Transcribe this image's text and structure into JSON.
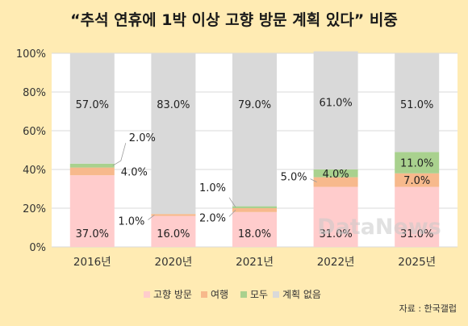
{
  "chart_data": {
    "type": "bar",
    "stacked": true,
    "title": "“추석 연휴에 1박 이상 고향 방문 계획 있다” 비중",
    "categories": [
      "2016년",
      "2020년",
      "2021년",
      "2022년",
      "2025년"
    ],
    "ylim": [
      0,
      100
    ],
    "yticks": [
      "0%",
      "20%",
      "40%",
      "60%",
      "80%",
      "100%"
    ],
    "grid": true,
    "legend_position": "bottom",
    "series": [
      {
        "name": "고향 방문",
        "color": "#FFCCCC",
        "values": [
          37.0,
          16.0,
          18.0,
          31.0,
          31.0
        ],
        "labels": [
          "37.0%",
          "16.0%",
          "18.0%",
          "31.0%",
          "31.0%"
        ]
      },
      {
        "name": "여행",
        "color": "#F7B98C",
        "values": [
          4.0,
          1.0,
          2.0,
          5.0,
          7.0
        ],
        "labels": [
          "4.0%",
          "1.0%",
          "2.0%",
          "5.0%",
          "7.0%"
        ]
      },
      {
        "name": "모두",
        "color": "#A9D18E",
        "values": [
          2.0,
          0,
          1.0,
          4.0,
          11.0
        ],
        "labels": [
          "2.0%",
          "",
          "1.0%",
          "4.0%",
          "11.0%"
        ]
      },
      {
        "name": "계획 없음",
        "color": "#D9D9D9",
        "values": [
          57.0,
          83.0,
          79.0,
          61.0,
          51.0
        ],
        "labels": [
          "57.0%",
          "83.0%",
          "79.0%",
          "61.0%",
          "51.0%"
        ]
      }
    ],
    "source": "자료 : 한국갤럽",
    "watermark": "DataNews"
  }
}
